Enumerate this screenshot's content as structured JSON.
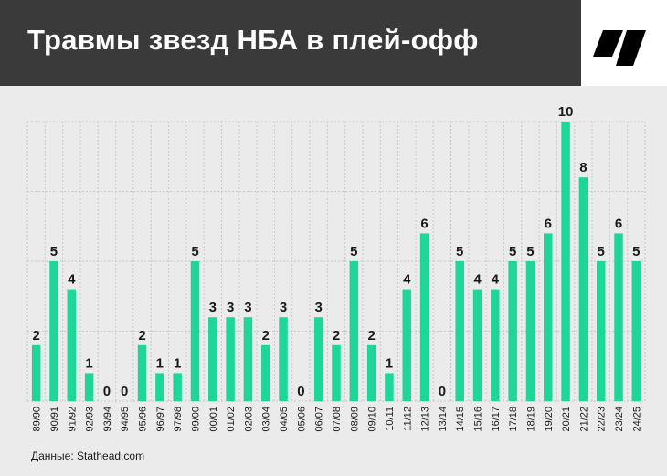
{
  "header": {
    "title": "Травмы звезд НБА в плей-офф",
    "background": "#3a3a3a"
  },
  "logo": {
    "icon": "brand-logo-icon"
  },
  "source": {
    "text": "Данные: Stathead.com"
  },
  "colors": {
    "bar": "#1ed69a",
    "grid": "#c9c9c9",
    "text": "#1a1a1a"
  },
  "chart_data": {
    "type": "bar",
    "categories": [
      "89/90",
      "90/91",
      "91/92",
      "92/93",
      "93/94",
      "94/95",
      "95/96",
      "96/97",
      "97/98",
      "99/00",
      "00/01",
      "01/02",
      "02/03",
      "03/04",
      "04/05",
      "05/06",
      "06/07",
      "07/08",
      "08/09",
      "09/10",
      "10/11",
      "11/12",
      "12/13",
      "13/14",
      "14/15",
      "15/16",
      "16/17",
      "17/18",
      "18/19",
      "19/20",
      "20/21",
      "21/22",
      "22/23",
      "23/24",
      "24/25"
    ],
    "values": [
      2,
      5,
      4,
      1,
      0,
      0,
      2,
      1,
      1,
      5,
      3,
      3,
      3,
      2,
      3,
      0,
      3,
      2,
      5,
      2,
      1,
      4,
      6,
      0,
      5,
      4,
      4,
      5,
      5,
      6,
      10,
      8,
      5,
      6,
      5
    ],
    "ylim": [
      0,
      10
    ],
    "grid": true,
    "data_labels": true
  }
}
